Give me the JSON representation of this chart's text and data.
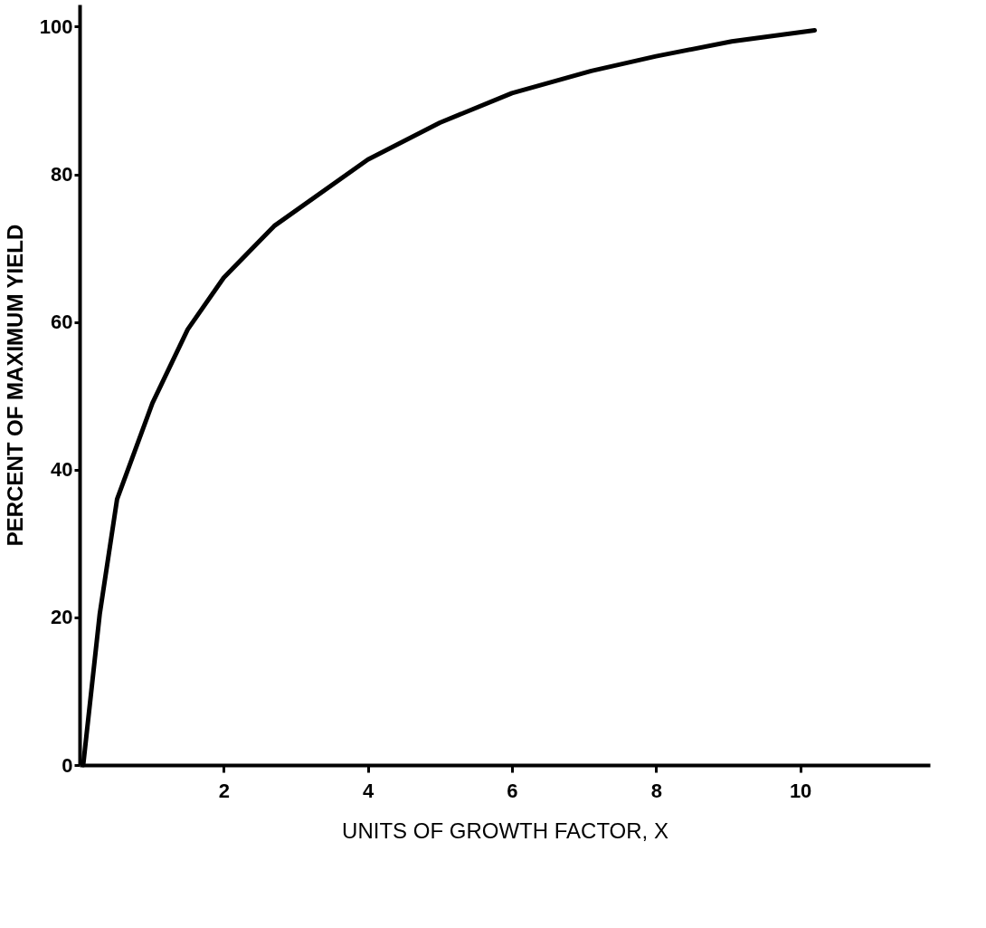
{
  "chart_data": {
    "type": "line",
    "xlabel": "UNITS OF GROWTH FACTOR, X",
    "ylabel": "PERCENT OF MAXIMUM YIELD",
    "x": [
      0.05,
      0.28,
      0.52,
      1.01,
      1.5,
      2,
      2.7,
      4,
      5,
      6,
      7.1,
      8,
      9.05,
      10.2
    ],
    "series": [
      {
        "color": "#000000",
        "values": [
          0,
          20.5,
          36,
          49,
          59,
          66,
          73,
          82,
          87,
          91,
          94,
          96,
          98,
          99.5
        ]
      }
    ],
    "xlim": [
      0,
      11.8
    ],
    "ylim": [
      0,
      103
    ],
    "xticks": [
      2,
      4,
      6,
      8,
      10
    ],
    "yticks": [
      0,
      20,
      40,
      60,
      80,
      100
    ],
    "grid": false,
    "marker": "none",
    "line_style": "solid"
  }
}
